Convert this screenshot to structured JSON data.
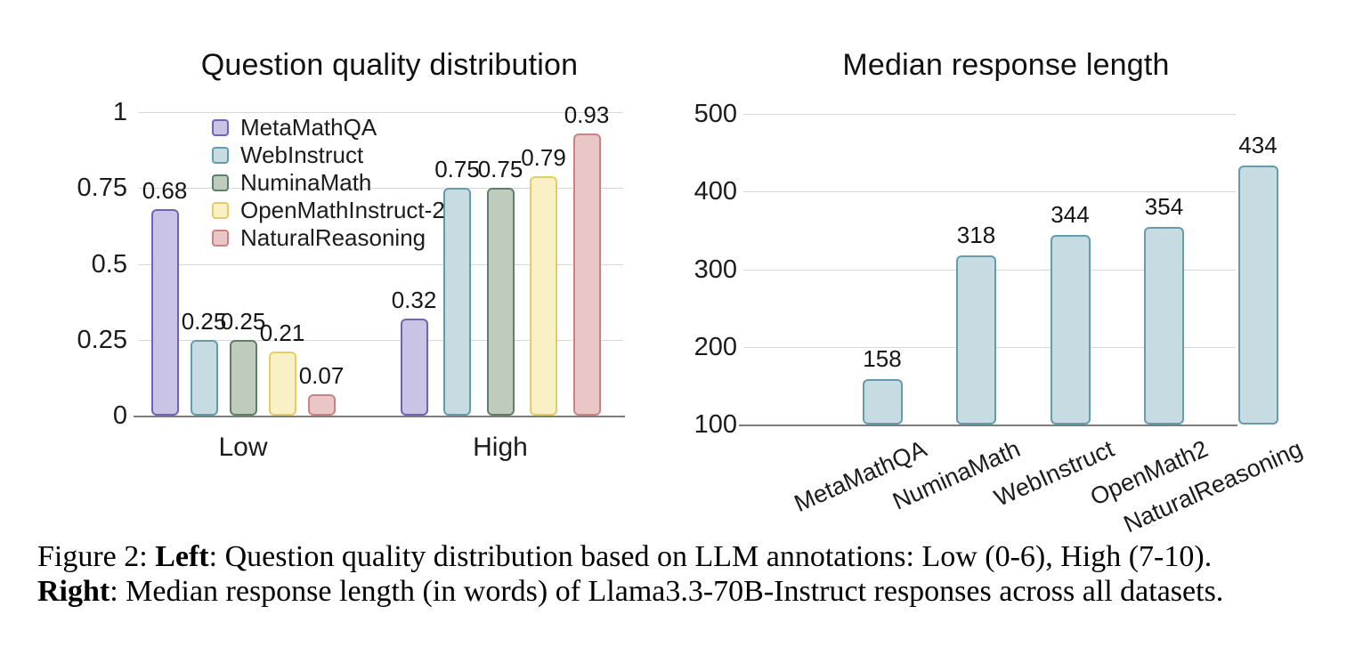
{
  "figure": {
    "caption": {
      "line1_prefix": "Figure 2: ",
      "line1_bold": "Left",
      "line1_rest": ": Question quality distribution based on LLM annotations: Low (0-6), High (7-10).",
      "line2_bold": "Right",
      "line2_rest": ": Median response length (in words) of Llama3.3-70B-Instruct responses across all datasets."
    }
  },
  "chart_data": [
    {
      "type": "bar",
      "title": "Question quality distribution",
      "categories": [
        "Low",
        "High"
      ],
      "series": [
        {
          "name": "MetaMathQA",
          "values": [
            0.68,
            0.32
          ],
          "fill": "#c9c3e5",
          "stroke": "#7065b4"
        },
        {
          "name": "WebInstruct",
          "values": [
            0.25,
            0.75
          ],
          "fill": "#c6dce2",
          "stroke": "#649cab"
        },
        {
          "name": "NuminaMath",
          "values": [
            0.25,
            0.75
          ],
          "fill": "#bfccbd",
          "stroke": "#617f68"
        },
        {
          "name": "OpenMathInstruct-2",
          "values": [
            0.21,
            0.79
          ],
          "fill": "#faf0c6",
          "stroke": "#e5cc68"
        },
        {
          "name": "NaturalReasoning",
          "values": [
            0.07,
            0.93
          ],
          "fill": "#eac7c6",
          "stroke": "#c48584"
        }
      ],
      "yticks": [
        0,
        0.25,
        0.5,
        0.75,
        1
      ],
      "ylim": [
        0,
        1
      ],
      "grid": true,
      "legend_position": "inside-top-left",
      "value_labels": true,
      "value_label_decimals": 2
    },
    {
      "type": "bar",
      "title": "Median response length",
      "categories": [
        "MetaMathQA",
        "NuminaMath",
        "WebInstruct",
        "OpenMath2",
        "NaturalReasoning"
      ],
      "values": [
        158,
        318,
        344,
        354,
        434
      ],
      "bar_fill": "#c6dce2",
      "bar_stroke": "#649cab",
      "yticks": [
        100,
        200,
        300,
        400,
        500
      ],
      "ylim": [
        100,
        500
      ],
      "grid": true,
      "value_labels": true,
      "xtick_rotation_deg": -24
    }
  ]
}
